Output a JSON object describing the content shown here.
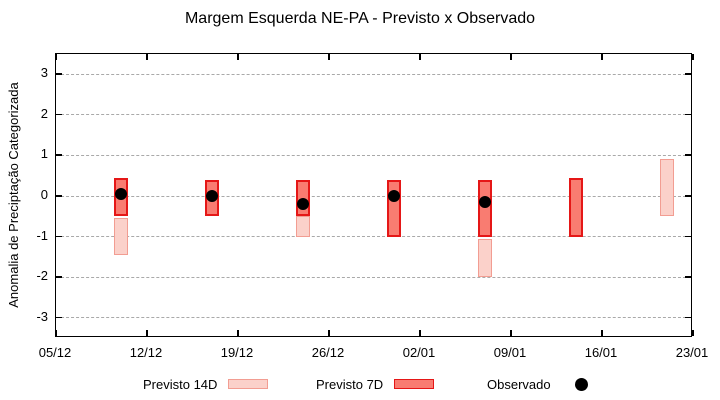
{
  "title": "Margem Esquerda NE-PA - Previsto x Observado",
  "colors": {
    "previsto_14d_fill": "#fbd1ca",
    "previsto_14d_border": "#f29d92",
    "previsto_7d_fill": "#f97c71",
    "previsto_7d_border": "#e51717",
    "observado": "#000000",
    "gridline": "#a9a9a9",
    "axis": "#000000"
  },
  "chart_data": {
    "type": "bar",
    "title": "Margem Esquerda NE-PA - Previsto x Observado",
    "xlabel": "",
    "ylabel": "Anomalia de Preciptação Categorizada",
    "grid": "horizontal-dashed",
    "legend_position": "bottom",
    "ylim": [
      -3.5,
      3.5
    ],
    "y_ticks": [
      -3,
      -2,
      -1,
      0,
      1,
      2,
      3
    ],
    "x_tick_labels": [
      "05/12",
      "12/12",
      "19/12",
      "26/12",
      "02/01",
      "09/01",
      "16/01",
      "23/01"
    ],
    "x_tick_days": [
      0,
      7,
      14,
      21,
      28,
      35,
      42,
      49
    ],
    "xlim_days": [
      0,
      49
    ],
    "series": [
      {
        "name": "Previsto 14D",
        "type": "box",
        "color": "#fbd1ca",
        "border": "#f29d92",
        "boxes": [
          {
            "date": "10/12",
            "day": 5,
            "lo": -1.45,
            "hi": -0.55
          },
          {
            "date": "24/12",
            "day": 19,
            "lo": -1.0,
            "hi": -0.5
          },
          {
            "date": "07/01",
            "day": 33,
            "lo": -2.0,
            "hi": -1.05
          },
          {
            "date": "21/01",
            "day": 47,
            "lo": -0.5,
            "hi": 0.9
          }
        ]
      },
      {
        "name": "Previsto 7D",
        "type": "box",
        "color": "#f97c71",
        "border": "#e51717",
        "boxes": [
          {
            "date": "10/12",
            "day": 5,
            "lo": -0.5,
            "hi": 0.45
          },
          {
            "date": "17/12",
            "day": 12,
            "lo": -0.5,
            "hi": 0.4
          },
          {
            "date": "24/12",
            "day": 19,
            "lo": -0.5,
            "hi": 0.4
          },
          {
            "date": "31/12",
            "day": 26,
            "lo": -1.0,
            "hi": 0.4
          },
          {
            "date": "07/01",
            "day": 33,
            "lo": -1.0,
            "hi": 0.4
          },
          {
            "date": "14/01",
            "day": 40,
            "lo": -1.0,
            "hi": 0.45
          }
        ]
      },
      {
        "name": "Observado",
        "type": "point",
        "color": "#000000",
        "points": [
          {
            "date": "10/12",
            "day": 5,
            "value": 0.05
          },
          {
            "date": "17/12",
            "day": 12,
            "value": 0.0
          },
          {
            "date": "24/12",
            "day": 19,
            "value": -0.2
          },
          {
            "date": "31/12",
            "day": 26,
            "value": 0.0
          },
          {
            "date": "07/01",
            "day": 33,
            "value": -0.15
          }
        ]
      }
    ]
  }
}
